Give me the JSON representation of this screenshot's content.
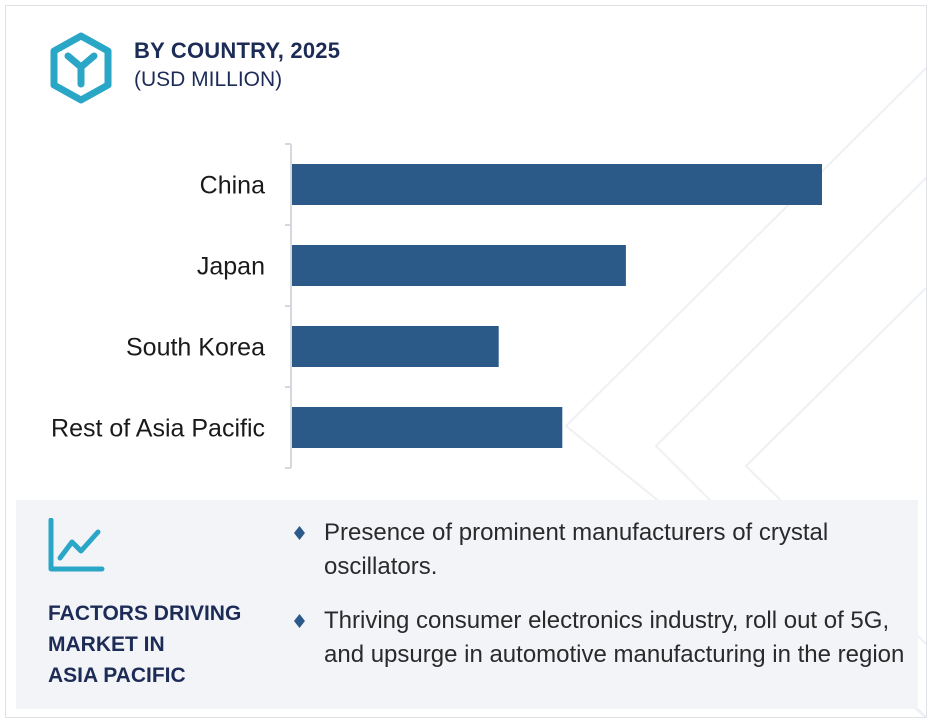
{
  "header": {
    "title": "BY COUNTRY, 2025",
    "subtitle": "(USD MILLION)",
    "icon": "hexagon-y-logo-icon"
  },
  "colors": {
    "bar": "#2c5a88",
    "accent": "#2aa6c6",
    "heading": "#1d2b57",
    "panel": "#f3f4f8"
  },
  "chart_data": {
    "type": "bar",
    "orientation": "horizontal",
    "categories": [
      "China",
      "Japan",
      "South Korea",
      "Rest of Asia Pacific"
    ],
    "values": [
      100,
      63,
      39,
      51
    ],
    "title": "BY COUNTRY, 2025",
    "subtitle": "(USD MILLION)",
    "xlabel": "",
    "ylabel": "",
    "xlim": [
      0,
      100
    ],
    "grid": false,
    "legend": "none",
    "value_axis_labels_shown": false
  },
  "factors": {
    "icon": "line-chart-trend-icon",
    "title_lines": [
      "FACTORS DRIVING",
      "MARKET IN",
      "ASIA PACIFIC"
    ],
    "bullets": [
      "Presence of prominent manufacturers of crystal oscillators.",
      "Thriving consumer electronics industry, roll out of 5G, and upsurge in automotive manufacturing in the region"
    ]
  }
}
